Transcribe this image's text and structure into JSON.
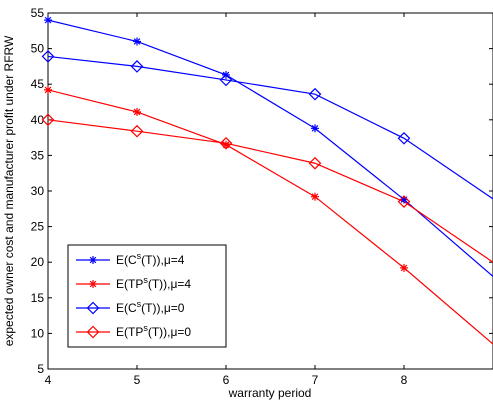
{
  "chart_data": {
    "type": "line",
    "title": "",
    "xlabel": "warranty period",
    "ylabel": "expected owner cost and manufacturer profit under RFRW",
    "xlim": [
      4,
      9
    ],
    "ylim": [
      5,
      55
    ],
    "xticks": [
      4,
      5,
      6,
      7,
      8
    ],
    "yticks": [
      5,
      10,
      15,
      20,
      25,
      30,
      35,
      40,
      45,
      50,
      55
    ],
    "grid": false,
    "legend_position": "lower-left",
    "series": [
      {
        "label": "E(C",
        "sup": "s",
        "tail": "(T)),μ=4",
        "color": "#0000ff",
        "marker": "star",
        "x": [
          4,
          5,
          6,
          7,
          8,
          9
        ],
        "y": [
          54.0,
          51.0,
          46.3,
          38.8,
          28.8,
          18.0
        ]
      },
      {
        "label": "E(TP",
        "sup": "s",
        "tail": "(T)),μ=4",
        "color": "#ff0000",
        "marker": "star",
        "x": [
          4,
          5,
          6,
          7,
          8,
          9
        ],
        "y": [
          44.2,
          41.1,
          36.5,
          29.2,
          19.2,
          8.5
        ]
      },
      {
        "label": "E(C",
        "sup": "s",
        "tail": "(T)),μ=0",
        "color": "#0000ff",
        "marker": "diamond",
        "x": [
          4,
          5,
          6,
          7,
          8,
          9
        ],
        "y": [
          48.9,
          47.5,
          45.6,
          43.6,
          37.4,
          28.9
        ]
      },
      {
        "label": "E(TP",
        "sup": "s",
        "tail": "(T)),μ=0",
        "color": "#ff0000",
        "marker": "diamond",
        "x": [
          4,
          5,
          6,
          7,
          8,
          9
        ],
        "y": [
          40.0,
          38.4,
          36.7,
          33.9,
          28.5,
          20.0
        ]
      }
    ]
  }
}
